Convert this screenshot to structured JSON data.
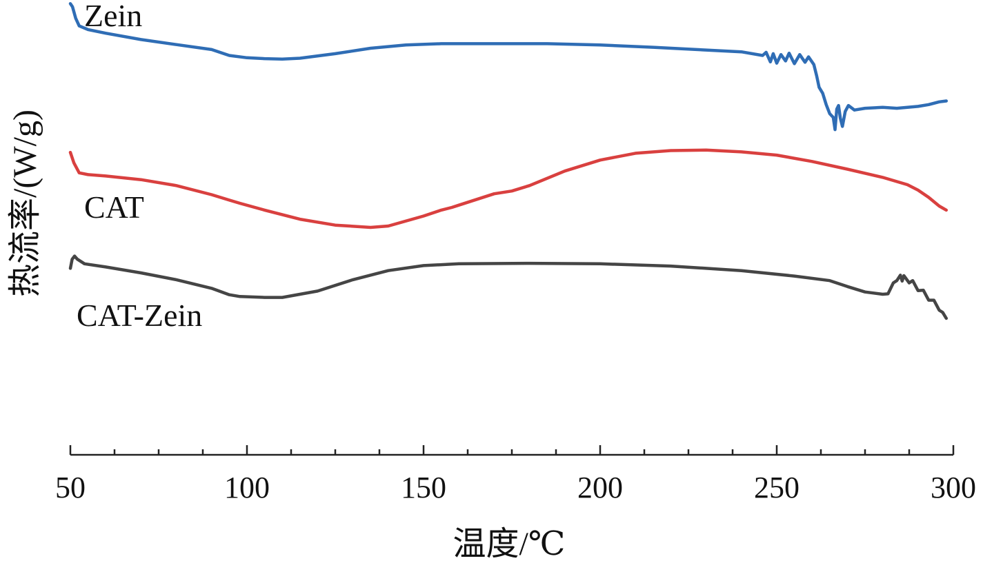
{
  "chart_data": {
    "type": "line",
    "xlabel": "温度/℃",
    "ylabel": "热流率/(W/g)",
    "xlim": [
      50,
      300
    ],
    "x_ticks": [
      50,
      100,
      150,
      200,
      250,
      300
    ],
    "x_minor_step": 12.5,
    "y_axis_numeric_labels": false,
    "grid": false,
    "legend": "inline labels next to each curve",
    "series": [
      {
        "name": "Zein",
        "color": "#2f6db5",
        "values": [
          [
            50.0,
            0.992
          ],
          [
            50.6,
            0.985
          ],
          [
            51.5,
            0.96
          ],
          [
            52.5,
            0.943
          ],
          [
            55,
            0.935
          ],
          [
            60,
            0.927
          ],
          [
            70,
            0.913
          ],
          [
            80,
            0.902
          ],
          [
            90,
            0.891
          ],
          [
            95,
            0.878
          ],
          [
            100,
            0.873
          ],
          [
            105,
            0.871
          ],
          [
            110,
            0.87
          ],
          [
            115,
            0.872
          ],
          [
            125,
            0.882
          ],
          [
            135,
            0.894
          ],
          [
            145,
            0.901
          ],
          [
            155,
            0.904
          ],
          [
            170,
            0.904
          ],
          [
            185,
            0.904
          ],
          [
            200,
            0.901
          ],
          [
            215,
            0.896
          ],
          [
            230,
            0.89
          ],
          [
            240,
            0.886
          ],
          [
            246,
            0.878
          ],
          [
            247,
            0.885
          ],
          [
            248.2,
            0.864
          ],
          [
            249,
            0.882
          ],
          [
            250,
            0.861
          ],
          [
            251.2,
            0.88
          ],
          [
            252.5,
            0.866
          ],
          [
            253.5,
            0.883
          ],
          [
            255,
            0.86
          ],
          [
            256.5,
            0.88
          ],
          [
            258,
            0.863
          ],
          [
            259,
            0.875
          ],
          [
            260.5,
            0.858
          ],
          [
            261.3,
            0.833
          ],
          [
            262,
            0.808
          ],
          [
            263,
            0.795
          ],
          [
            264,
            0.77
          ],
          [
            265,
            0.75
          ],
          [
            266,
            0.742
          ],
          [
            266.5,
            0.715
          ],
          [
            267,
            0.76
          ],
          [
            267.5,
            0.768
          ],
          [
            268,
            0.74
          ],
          [
            268.6,
            0.722
          ],
          [
            269.4,
            0.755
          ],
          [
            270.3,
            0.768
          ],
          [
            272,
            0.758
          ],
          [
            275,
            0.762
          ],
          [
            280,
            0.764
          ],
          [
            284,
            0.762
          ],
          [
            290,
            0.766
          ],
          [
            293,
            0.77
          ],
          [
            296,
            0.776
          ],
          [
            298,
            0.778
          ]
        ]
      },
      {
        "name": "CAT",
        "color": "#d9403f",
        "values": [
          [
            50.0,
            0.665
          ],
          [
            51,
            0.642
          ],
          [
            52.5,
            0.62
          ],
          [
            55,
            0.616
          ],
          [
            60,
            0.613
          ],
          [
            70,
            0.605
          ],
          [
            80,
            0.592
          ],
          [
            90,
            0.572
          ],
          [
            95,
            0.56
          ],
          [
            98,
            0.553
          ],
          [
            105,
            0.538
          ],
          [
            115,
            0.518
          ],
          [
            125,
            0.505
          ],
          [
            135,
            0.5
          ],
          [
            140,
            0.503
          ],
          [
            150,
            0.525
          ],
          [
            155,
            0.538
          ],
          [
            158,
            0.544
          ],
          [
            160,
            0.549
          ],
          [
            170,
            0.574
          ],
          [
            175,
            0.58
          ],
          [
            180,
            0.592
          ],
          [
            190,
            0.624
          ],
          [
            200,
            0.648
          ],
          [
            210,
            0.663
          ],
          [
            220,
            0.669
          ],
          [
            230,
            0.67
          ],
          [
            240,
            0.666
          ],
          [
            250,
            0.659
          ],
          [
            260,
            0.645
          ],
          [
            270,
            0.628
          ],
          [
            280,
            0.61
          ],
          [
            287,
            0.594
          ],
          [
            290,
            0.582
          ],
          [
            293,
            0.566
          ],
          [
            296,
            0.547
          ],
          [
            298,
            0.538
          ]
        ]
      },
      {
        "name": "CAT-Zein",
        "color": "#454545",
        "values": [
          [
            50.0,
            0.41
          ],
          [
            50.5,
            0.43
          ],
          [
            51.2,
            0.437
          ],
          [
            52,
            0.43
          ],
          [
            54,
            0.42
          ],
          [
            60,
            0.413
          ],
          [
            70,
            0.4
          ],
          [
            80,
            0.385
          ],
          [
            90,
            0.366
          ],
          [
            95,
            0.352
          ],
          [
            98,
            0.348
          ],
          [
            105,
            0.346
          ],
          [
            110,
            0.346
          ],
          [
            120,
            0.36
          ],
          [
            130,
            0.385
          ],
          [
            140,
            0.405
          ],
          [
            150,
            0.416
          ],
          [
            160,
            0.42
          ],
          [
            180,
            0.421
          ],
          [
            200,
            0.42
          ],
          [
            220,
            0.415
          ],
          [
            240,
            0.405
          ],
          [
            255,
            0.393
          ],
          [
            265,
            0.383
          ],
          [
            270,
            0.37
          ],
          [
            275,
            0.358
          ],
          [
            280,
            0.353
          ],
          [
            281.5,
            0.354
          ],
          [
            283,
            0.378
          ],
          [
            284,
            0.383
          ],
          [
            285,
            0.395
          ],
          [
            285.5,
            0.382
          ],
          [
            286,
            0.394
          ],
          [
            287.5,
            0.378
          ],
          [
            288.5,
            0.383
          ],
          [
            290,
            0.361
          ],
          [
            291.5,
            0.362
          ],
          [
            293,
            0.34
          ],
          [
            294.5,
            0.34
          ],
          [
            296,
            0.318
          ],
          [
            297,
            0.313
          ],
          [
            298,
            0.3
          ]
        ]
      }
    ]
  }
}
